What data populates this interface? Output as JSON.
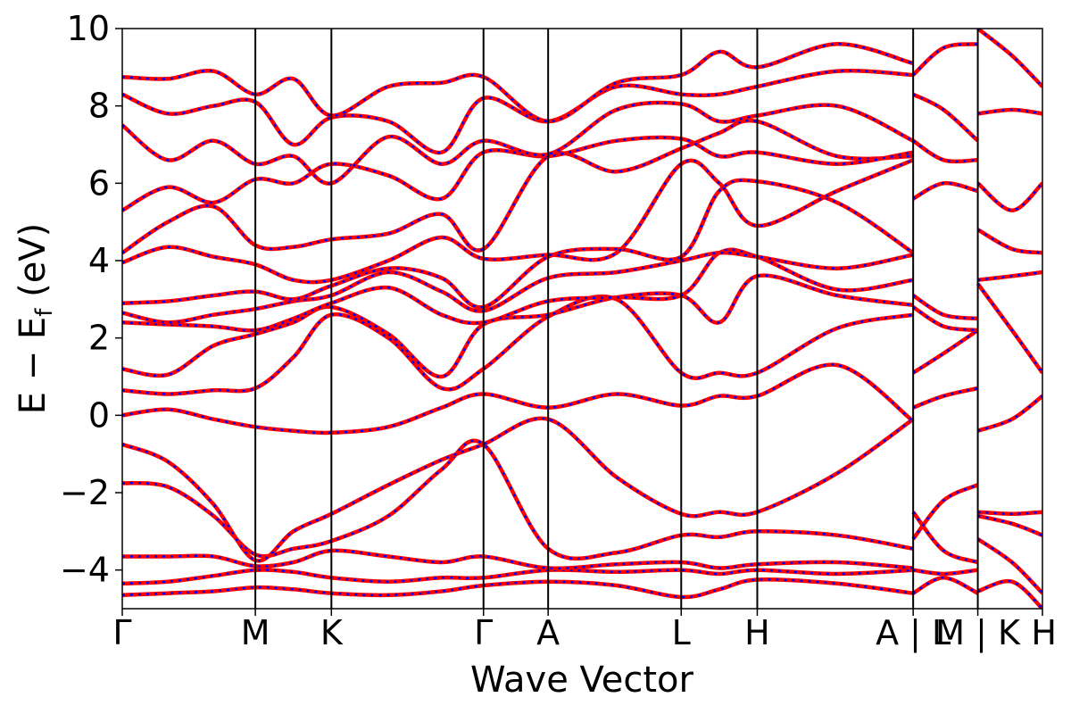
{
  "chart_data": {
    "type": "line",
    "title": "",
    "xlabel": "Wave Vector",
    "ylabel": "E − E",
    "ylabel_subscript": "f",
    "ylabel_unit": "(eV)",
    "ylim": [
      -5,
      10
    ],
    "yticks": [
      {
        "value": 10,
        "label": "10"
      },
      {
        "value": 8,
        "label": "8"
      },
      {
        "value": 6,
        "label": "6"
      },
      {
        "value": 4,
        "label": "4"
      },
      {
        "value": 2,
        "label": "2"
      },
      {
        "value": 0,
        "label": "0"
      },
      {
        "value": -2,
        "label": "−2"
      },
      {
        "value": -4,
        "label": "−4"
      }
    ],
    "xlim": [
      0,
      12.1
    ],
    "kpoints": [
      {
        "label": "Γ",
        "x": 0.0
      },
      {
        "label": "M",
        "x": 1.75
      },
      {
        "label": "K",
        "x": 2.75
      },
      {
        "label": "Γ",
        "x": 4.75
      },
      {
        "label": "A",
        "x": 5.6
      },
      {
        "label": "L",
        "x": 7.35
      },
      {
        "label": "H",
        "x": 8.35
      },
      {
        "label": "A | L",
        "x": 10.4
      },
      {
        "label": "M | K",
        "x": 11.25
      },
      {
        "label": "H",
        "x": 12.1
      }
    ],
    "separators": [
      1.75,
      2.75,
      4.75,
      5.6,
      7.35,
      8.35,
      10.4,
      11.25
    ],
    "series_styles": [
      {
        "color": "#ff0000",
        "style": "solid"
      },
      {
        "color": "#0000ff",
        "style": "dotted"
      }
    ],
    "bands": [
      [
        [
          0,
          -4.65
        ],
        [
          0.6,
          -4.6
        ],
        [
          1.2,
          -4.55
        ],
        [
          1.75,
          -4.45
        ],
        [
          2.25,
          -4.5
        ],
        [
          2.75,
          -4.6
        ],
        [
          3.5,
          -4.65
        ],
        [
          4.2,
          -4.55
        ],
        [
          4.75,
          -4.4
        ],
        [
          5.6,
          -4.3
        ],
        [
          6.5,
          -4.4
        ],
        [
          7.35,
          -4.7
        ],
        [
          7.85,
          -4.5
        ],
        [
          8.35,
          -4.25
        ],
        [
          9.4,
          -4.35
        ],
        [
          10.4,
          -4.6
        ]
      ],
      [
        [
          0,
          -4.35
        ],
        [
          0.6,
          -4.3
        ],
        [
          1.2,
          -4.15
        ],
        [
          1.75,
          -4.0
        ],
        [
          2.25,
          -4.05
        ],
        [
          2.75,
          -4.2
        ],
        [
          3.5,
          -4.3
        ],
        [
          4.2,
          -4.2
        ],
        [
          4.75,
          -4.2
        ],
        [
          5.6,
          -4.0
        ],
        [
          6.5,
          -4.05
        ],
        [
          7.35,
          -4.0
        ],
        [
          7.85,
          -4.1
        ],
        [
          8.35,
          -4.0
        ],
        [
          9.4,
          -4.1
        ],
        [
          10.4,
          -4.0
        ]
      ],
      [
        [
          0,
          -3.65
        ],
        [
          0.6,
          -3.65
        ],
        [
          1.2,
          -3.65
        ],
        [
          1.75,
          -3.9
        ],
        [
          2.25,
          -3.8
        ],
        [
          2.75,
          -3.5
        ],
        [
          3.5,
          -3.65
        ],
        [
          4.2,
          -3.8
        ],
        [
          4.75,
          -3.65
        ],
        [
          5.6,
          -3.95
        ],
        [
          6.5,
          -3.85
        ],
        [
          7.35,
          -3.8
        ],
        [
          7.85,
          -3.95
        ],
        [
          8.35,
          -3.85
        ],
        [
          9.4,
          -3.8
        ],
        [
          10.4,
          -3.95
        ]
      ],
      [
        [
          0,
          -1.75
        ],
        [
          0.6,
          -1.85
        ],
        [
          1.2,
          -2.6
        ],
        [
          1.75,
          -3.6
        ],
        [
          2.25,
          -3.45
        ],
        [
          2.75,
          -3.25
        ],
        [
          3.5,
          -2.6
        ],
        [
          4.2,
          -1.4
        ],
        [
          4.75,
          -0.75
        ],
        [
          5.6,
          -3.45
        ],
        [
          6.5,
          -3.55
        ],
        [
          7.35,
          -3.1
        ],
        [
          7.85,
          -3.15
        ],
        [
          8.35,
          -3.0
        ],
        [
          9.4,
          -3.1
        ],
        [
          10.4,
          -3.45
        ]
      ],
      [
        [
          0,
          -0.75
        ],
        [
          0.6,
          -1.2
        ],
        [
          1.2,
          -2.3
        ],
        [
          1.75,
          -3.75
        ],
        [
          2.25,
          -3.0
        ],
        [
          2.75,
          -2.55
        ],
        [
          3.5,
          -1.8
        ],
        [
          4.2,
          -1.15
        ],
        [
          4.75,
          -0.75
        ],
        [
          5.6,
          -0.1
        ],
        [
          6.5,
          -1.6
        ],
        [
          7.35,
          -2.55
        ],
        [
          7.85,
          -2.5
        ],
        [
          8.35,
          -2.5
        ],
        [
          9.4,
          -1.5
        ],
        [
          10.4,
          -0.1
        ]
      ],
      [
        [
          0,
          0.0
        ],
        [
          0.6,
          0.15
        ],
        [
          1.2,
          -0.1
        ],
        [
          1.75,
          -0.3
        ],
        [
          2.25,
          -0.4
        ],
        [
          2.75,
          -0.45
        ],
        [
          3.5,
          -0.3
        ],
        [
          4.2,
          0.2
        ],
        [
          4.75,
          0.55
        ],
        [
          5.6,
          0.2
        ],
        [
          6.5,
          0.55
        ],
        [
          7.35,
          0.25
        ],
        [
          7.85,
          0.5
        ],
        [
          8.35,
          0.5
        ],
        [
          9.4,
          1.3
        ],
        [
          10.4,
          -0.15
        ]
      ],
      [
        [
          0,
          0.65
        ],
        [
          0.6,
          0.55
        ],
        [
          1.2,
          0.65
        ],
        [
          1.75,
          0.7
        ],
        [
          2.25,
          1.5
        ],
        [
          2.75,
          2.6
        ],
        [
          3.5,
          2.0
        ],
        [
          4.2,
          0.7
        ],
        [
          4.75,
          1.2
        ],
        [
          5.6,
          2.55
        ],
        [
          6.5,
          3.0
        ],
        [
          7.35,
          1.1
        ],
        [
          7.85,
          1.1
        ],
        [
          8.35,
          1.1
        ],
        [
          9.4,
          2.25
        ],
        [
          10.4,
          2.6
        ]
      ],
      [
        [
          0,
          1.2
        ],
        [
          0.6,
          1.05
        ],
        [
          1.2,
          1.8
        ],
        [
          1.75,
          2.1
        ],
        [
          2.25,
          2.4
        ],
        [
          2.75,
          2.8
        ],
        [
          3.5,
          2.1
        ],
        [
          4.2,
          1.0
        ],
        [
          4.75,
          2.35
        ],
        [
          5.6,
          2.6
        ],
        [
          6.5,
          3.05
        ],
        [
          7.35,
          3.1
        ],
        [
          7.85,
          2.4
        ],
        [
          8.35,
          3.6
        ],
        [
          9.4,
          3.1
        ],
        [
          10.4,
          2.85
        ]
      ],
      [
        [
          0,
          2.4
        ],
        [
          0.6,
          2.35
        ],
        [
          1.2,
          2.3
        ],
        [
          1.75,
          2.2
        ],
        [
          2.25,
          2.5
        ],
        [
          2.75,
          2.9
        ],
        [
          3.5,
          3.3
        ],
        [
          4.2,
          2.6
        ],
        [
          4.75,
          2.4
        ],
        [
          5.6,
          2.95
        ],
        [
          6.5,
          3.05
        ],
        [
          7.35,
          3.1
        ],
        [
          7.85,
          4.2
        ],
        [
          8.35,
          4.1
        ],
        [
          9.4,
          3.25
        ],
        [
          10.4,
          3.5
        ]
      ],
      [
        [
          0,
          2.65
        ],
        [
          0.6,
          2.4
        ],
        [
          1.2,
          2.6
        ],
        [
          1.75,
          2.75
        ],
        [
          2.25,
          2.95
        ],
        [
          2.75,
          3.1
        ],
        [
          3.5,
          3.7
        ],
        [
          4.2,
          3.2
        ],
        [
          4.75,
          2.7
        ],
        [
          5.6,
          3.55
        ],
        [
          6.5,
          3.7
        ],
        [
          7.35,
          4.0
        ],
        [
          7.85,
          4.2
        ],
        [
          8.35,
          4.1
        ],
        [
          9.4,
          3.8
        ],
        [
          10.4,
          4.15
        ]
      ],
      [
        [
          0,
          2.9
        ],
        [
          0.6,
          2.95
        ],
        [
          1.2,
          3.1
        ],
        [
          1.75,
          3.2
        ],
        [
          2.25,
          3.0
        ],
        [
          2.75,
          3.35
        ],
        [
          3.5,
          3.8
        ],
        [
          4.2,
          3.55
        ],
        [
          4.75,
          2.8
        ],
        [
          5.6,
          4.1
        ],
        [
          6.5,
          4.3
        ],
        [
          7.35,
          4.1
        ],
        [
          7.85,
          5.8
        ],
        [
          8.35,
          6.05
        ],
        [
          9.4,
          5.5
        ],
        [
          10.4,
          4.2
        ]
      ],
      [
        [
          0,
          3.95
        ],
        [
          0.6,
          4.35
        ],
        [
          1.2,
          4.1
        ],
        [
          1.75,
          3.9
        ],
        [
          2.25,
          3.5
        ],
        [
          2.75,
          3.5
        ],
        [
          3.5,
          4.0
        ],
        [
          4.2,
          4.6
        ],
        [
          4.75,
          4.05
        ],
        [
          5.6,
          4.15
        ],
        [
          6.5,
          4.2
        ],
        [
          7.35,
          6.5
        ],
        [
          7.85,
          6.0
        ],
        [
          8.35,
          4.9
        ],
        [
          9.4,
          5.8
        ],
        [
          10.4,
          6.6
        ]
      ],
      [
        [
          0,
          4.2
        ],
        [
          0.6,
          5.0
        ],
        [
          1.2,
          5.4
        ],
        [
          1.75,
          4.4
        ],
        [
          2.25,
          4.35
        ],
        [
          2.75,
          4.55
        ],
        [
          3.5,
          4.7
        ],
        [
          4.2,
          5.2
        ],
        [
          4.75,
          4.3
        ],
        [
          5.6,
          6.7
        ],
        [
          6.5,
          6.3
        ],
        [
          7.35,
          6.9
        ],
        [
          7.85,
          7.3
        ],
        [
          8.35,
          7.6
        ],
        [
          9.4,
          6.7
        ],
        [
          10.4,
          6.7
        ]
      ],
      [
        [
          0,
          5.3
        ],
        [
          0.6,
          5.9
        ],
        [
          1.2,
          5.5
        ],
        [
          1.75,
          6.1
        ],
        [
          2.25,
          6.0
        ],
        [
          2.75,
          6.5
        ],
        [
          3.5,
          6.2
        ],
        [
          4.2,
          5.6
        ],
        [
          4.75,
          6.8
        ],
        [
          5.6,
          6.7
        ],
        [
          6.5,
          7.1
        ],
        [
          7.35,
          7.15
        ],
        [
          7.85,
          6.7
        ],
        [
          8.35,
          6.8
        ],
        [
          9.4,
          6.5
        ],
        [
          10.4,
          6.8
        ]
      ],
      [
        [
          0,
          7.5
        ],
        [
          0.6,
          6.6
        ],
        [
          1.2,
          7.1
        ],
        [
          1.75,
          6.5
        ],
        [
          2.25,
          6.7
        ],
        [
          2.75,
          6.0
        ],
        [
          3.5,
          7.2
        ],
        [
          4.2,
          6.5
        ],
        [
          4.75,
          7.1
        ],
        [
          5.6,
          6.75
        ],
        [
          6.5,
          7.9
        ],
        [
          7.35,
          8.05
        ],
        [
          7.85,
          7.6
        ],
        [
          8.35,
          7.75
        ],
        [
          9.4,
          8.0
        ],
        [
          10.4,
          7.1
        ]
      ],
      [
        [
          0,
          8.3
        ],
        [
          0.6,
          7.8
        ],
        [
          1.2,
          8.0
        ],
        [
          1.75,
          8.1
        ],
        [
          2.25,
          7.0
        ],
        [
          2.75,
          7.7
        ],
        [
          3.5,
          7.6
        ],
        [
          4.2,
          6.8
        ],
        [
          4.75,
          8.2
        ],
        [
          5.6,
          7.6
        ],
        [
          6.5,
          8.5
        ],
        [
          7.35,
          8.3
        ],
        [
          7.85,
          8.3
        ],
        [
          8.35,
          8.5
        ],
        [
          9.4,
          8.9
        ],
        [
          10.4,
          8.8
        ]
      ],
      [
        [
          0,
          8.75
        ],
        [
          0.6,
          8.7
        ],
        [
          1.2,
          8.9
        ],
        [
          1.75,
          8.3
        ],
        [
          2.25,
          8.7
        ],
        [
          2.75,
          7.75
        ],
        [
          3.5,
          8.5
        ],
        [
          4.2,
          8.6
        ],
        [
          4.75,
          8.75
        ],
        [
          5.6,
          7.6
        ],
        [
          6.5,
          8.6
        ],
        [
          7.35,
          8.8
        ],
        [
          7.85,
          9.4
        ],
        [
          8.35,
          9.0
        ],
        [
          9.4,
          9.6
        ],
        [
          10.4,
          9.1
        ]
      ]
    ],
    "bands_segment2": [
      [
        [
          10.4,
          -4.6
        ],
        [
          10.8,
          -4.2
        ],
        [
          11.25,
          -4.6
        ]
      ],
      [
        [
          10.4,
          -4.0
        ],
        [
          10.8,
          -4.1
        ],
        [
          11.25,
          -4.0
        ]
      ],
      [
        [
          10.4,
          -2.5
        ],
        [
          10.8,
          -3.5
        ],
        [
          11.25,
          -3.8
        ]
      ],
      [
        [
          10.4,
          -3.2
        ],
        [
          10.8,
          -2.2
        ],
        [
          11.25,
          -1.8
        ]
      ],
      [
        [
          10.4,
          0.2
        ],
        [
          10.8,
          0.5
        ],
        [
          11.25,
          0.7
        ]
      ],
      [
        [
          10.4,
          1.1
        ],
        [
          10.8,
          1.6
        ],
        [
          11.25,
          2.2
        ]
      ],
      [
        [
          10.4,
          3.1
        ],
        [
          10.8,
          2.6
        ],
        [
          11.25,
          2.5
        ]
      ],
      [
        [
          10.4,
          2.8
        ],
        [
          10.8,
          2.3
        ],
        [
          11.25,
          2.2
        ]
      ],
      [
        [
          10.4,
          5.6
        ],
        [
          10.8,
          6.0
        ],
        [
          11.25,
          5.8
        ]
      ],
      [
        [
          10.4,
          7.1
        ],
        [
          10.8,
          6.6
        ],
        [
          11.25,
          6.6
        ]
      ],
      [
        [
          10.4,
          8.3
        ],
        [
          10.8,
          7.9
        ],
        [
          11.25,
          7.1
        ]
      ],
      [
        [
          10.4,
          8.8
        ],
        [
          10.8,
          9.5
        ],
        [
          11.25,
          9.6
        ]
      ]
    ],
    "bands_segment3": [
      [
        [
          11.25,
          -4.55
        ],
        [
          11.7,
          -4.3
        ],
        [
          12.1,
          -5.0
        ]
      ],
      [
        [
          11.25,
          -3.2
        ],
        [
          11.7,
          -3.8
        ],
        [
          12.1,
          -4.6
        ]
      ],
      [
        [
          11.25,
          -2.6
        ],
        [
          11.7,
          -2.8
        ],
        [
          12.1,
          -3.1
        ]
      ],
      [
        [
          11.25,
          -2.5
        ],
        [
          11.7,
          -2.55
        ],
        [
          12.1,
          -2.5
        ]
      ],
      [
        [
          11.25,
          -0.4
        ],
        [
          11.7,
          -0.1
        ],
        [
          12.1,
          0.5
        ]
      ],
      [
        [
          11.25,
          3.4
        ],
        [
          11.7,
          2.2
        ],
        [
          12.1,
          1.1
        ]
      ],
      [
        [
          11.25,
          4.8
        ],
        [
          11.7,
          4.3
        ],
        [
          12.1,
          4.2
        ]
      ],
      [
        [
          11.25,
          3.5
        ],
        [
          11.7,
          3.6
        ],
        [
          12.1,
          3.7
        ]
      ],
      [
        [
          11.25,
          6.0
        ],
        [
          11.7,
          5.3
        ],
        [
          12.1,
          6.0
        ]
      ],
      [
        [
          11.25,
          7.8
        ],
        [
          11.7,
          7.9
        ],
        [
          12.1,
          7.8
        ]
      ],
      [
        [
          11.25,
          10.0
        ],
        [
          11.7,
          9.3
        ],
        [
          12.1,
          8.5
        ]
      ]
    ]
  }
}
